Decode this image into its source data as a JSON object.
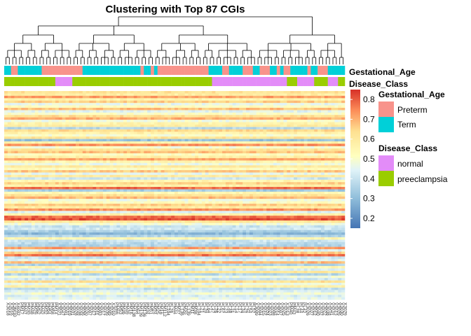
{
  "chart_data": {
    "type": "heatmap",
    "title": "Clustering with Top 87 CGIs",
    "n_samples": 100,
    "n_rows": 87,
    "color_scale": {
      "min": 0.15,
      "max": 0.85,
      "low_color": "#4575b4",
      "mid_color": "#ffffbf",
      "high_color": "#d73027",
      "ticks": [
        "0.8",
        "0.7",
        "0.6",
        "0.5",
        "0.4",
        "0.3",
        "0.2"
      ]
    },
    "annotations": [
      {
        "name": "Gestational_Age",
        "levels": [
          {
            "label": "Preterm",
            "color": "#f8938b"
          },
          {
            "label": "Term",
            "color": "#00d0d8"
          }
        ],
        "values": "TTPPTTTTTTTPPPPPPPPPPPPTTTTTTTTTTTTTTTTTPTTPTPPPPPPPPPPPPPPPTTTTPPTTTTPPPTTPPPTTPTPPTTTTTPTTPPPTTTTTTTP"
      },
      {
        "name": "Disease_Class",
        "levels": [
          {
            "label": "normal",
            "color": "#e38cf8"
          },
          {
            "label": "preeclampsia",
            "color": "#9acd00"
          }
        ],
        "values": "PPPPPPPPPPPPPPPNNNNNPPPPPPPPPPPPPPPPPPPPPPPPPPPPPPPPPPPPPPPPPNNNNNNNNNNNNNNNNNNNNNNPPPNNNNNPPPPNNNPPPPPP"
      }
    ],
    "row_means": [
      0.62,
      0.58,
      0.72,
      0.55,
      0.66,
      0.46,
      0.52,
      0.68,
      0.45,
      0.51,
      0.63,
      0.7,
      0.48,
      0.56,
      0.59,
      0.37,
      0.64,
      0.57,
      0.5,
      0.62,
      0.31,
      0.56,
      0.74,
      0.49,
      0.62,
      0.68,
      0.52,
      0.58,
      0.71,
      0.55,
      0.47,
      0.6,
      0.52,
      0.67,
      0.46,
      0.59,
      0.41,
      0.55,
      0.65,
      0.57,
      0.78,
      0.34,
      0.54,
      0.62,
      0.69,
      0.48,
      0.52,
      0.66,
      0.59,
      0.74,
      0.44,
      0.57,
      0.78,
      0.82,
      0.61,
      0.48,
      0.4,
      0.42,
      0.35,
      0.29,
      0.37,
      0.55,
      0.41,
      0.38,
      0.36,
      0.72,
      0.44,
      0.66,
      0.77,
      0.4,
      0.45,
      0.69,
      0.36,
      0.55,
      0.43,
      0.61,
      0.37,
      0.48,
      0.41,
      0.63,
      0.46,
      0.57,
      0.39,
      0.44,
      0.49,
      0.43,
      0.46
    ],
    "sample_labels": [
      "X3018",
      "X3016",
      "X3M10",
      "X4002",
      "PM17",
      "PM47",
      "PM30",
      "PM48",
      "PM29",
      "PM52",
      "PM42",
      "PM32",
      "PM54",
      "PM68",
      "PM14",
      "X3021",
      "X3047",
      "X3001",
      "X3019",
      "X3031",
      "X3028",
      "X3038",
      "X3036",
      "X3020",
      "X3007",
      "X3017",
      "X3011",
      "X3003",
      "X3017",
      "X3039",
      "X3005",
      "X3010",
      "PM66",
      "PM53",
      "PM36",
      "PM49",
      "PM16",
      "PM138",
      "PM64",
      "PM139",
      "PM136",
      "PM34",
      "PM51",
      "PM24",
      "PM25",
      "PM16",
      "PM112",
      "PL104",
      "PL26",
      "PM44",
      "PM37",
      "PL136",
      "PM20",
      "PL139",
      "PM11",
      "PM38",
      "PL104",
      "PL21",
      "PL20",
      "PL64",
      "PL47",
      "PL26",
      "PL22",
      "PL67",
      "PL23",
      "PL48",
      "PL31",
      "PL14",
      "PL17",
      "PL34",
      "PL29",
      "PL54",
      "PL52",
      "X3009",
      "X3004",
      "X3015",
      "X3024",
      "X3023",
      "X3008",
      "X3014",
      "X3007",
      "X3025",
      "X3013",
      "PM40",
      "PM43",
      "PL38",
      "PL44",
      "PL42",
      "X3026",
      "X3027",
      "X3012",
      "X3040",
      "X3032",
      "X3022",
      "X3038",
      "X3041",
      "X3012",
      "X3029",
      "X3030",
      "X3029"
    ]
  }
}
